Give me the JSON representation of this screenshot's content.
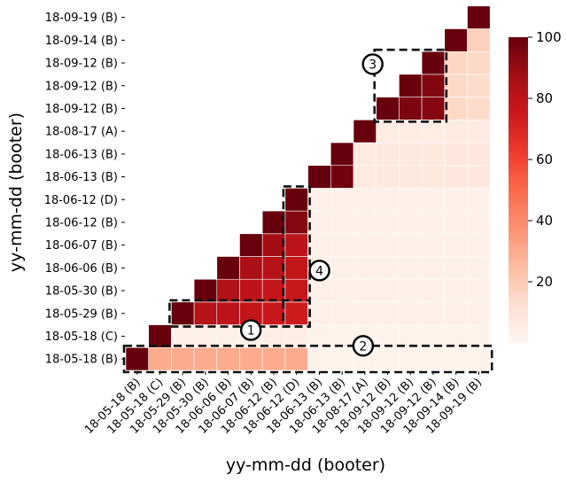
{
  "chart_data": {
    "type": "heatmap",
    "xlabel": "yy-mm-dd (booter)",
    "ylabel": "yy-mm-dd (booter)",
    "categories": [
      "18-05-18 (B)",
      "18-05-18 (C)",
      "18-05-29 (B)",
      "18-05-30 (B)",
      "18-06-06 (B)",
      "18-06-07 (B)",
      "18-06-12 (B)",
      "18-06-12 (D)",
      "18-06-13 (B)",
      "18-06-13 (B)",
      "18-08-17 (A)",
      "18-09-12 (B)",
      "18-09-12 (B)",
      "18-09-12 (B)",
      "18-09-14 (B)",
      "18-09-19 (B)"
    ],
    "matrix": [
      [
        100,
        30,
        30,
        30,
        30,
        30,
        30,
        30,
        2,
        2,
        2,
        2,
        2,
        2,
        2,
        2
      ],
      [
        null,
        100,
        3,
        3,
        3,
        3,
        4,
        4,
        2,
        2,
        2,
        2,
        2,
        2,
        2,
        2
      ],
      [
        null,
        null,
        100,
        82,
        80,
        78,
        76,
        74,
        3,
        3,
        3,
        3,
        3,
        3,
        3,
        3
      ],
      [
        null,
        null,
        null,
        100,
        84,
        80,
        78,
        76,
        3,
        3,
        3,
        3,
        3,
        3,
        3,
        3
      ],
      [
        null,
        null,
        null,
        null,
        100,
        86,
        82,
        78,
        3,
        3,
        3,
        3,
        3,
        3,
        3,
        3
      ],
      [
        null,
        null,
        null,
        null,
        null,
        100,
        88,
        80,
        3,
        3,
        3,
        3,
        3,
        3,
        3,
        3
      ],
      [
        null,
        null,
        null,
        null,
        null,
        null,
        100,
        94,
        3,
        3,
        3,
        3,
        3,
        3,
        3,
        3
      ],
      [
        null,
        null,
        null,
        null,
        null,
        null,
        null,
        100,
        3,
        3,
        3,
        3,
        3,
        3,
        3,
        3
      ],
      [
        null,
        null,
        null,
        null,
        null,
        null,
        null,
        null,
        100,
        98,
        6,
        7,
        7,
        7,
        8,
        8
      ],
      [
        null,
        null,
        null,
        null,
        null,
        null,
        null,
        null,
        null,
        100,
        6,
        7,
        7,
        7,
        8,
        8
      ],
      [
        null,
        null,
        null,
        null,
        null,
        null,
        null,
        null,
        null,
        null,
        100,
        5,
        5,
        5,
        6,
        6
      ],
      [
        null,
        null,
        null,
        null,
        null,
        null,
        null,
        null,
        null,
        null,
        null,
        100,
        96,
        94,
        15,
        14
      ],
      [
        null,
        null,
        null,
        null,
        null,
        null,
        null,
        null,
        null,
        null,
        null,
        null,
        100,
        95,
        15,
        14
      ],
      [
        null,
        null,
        null,
        null,
        null,
        null,
        null,
        null,
        null,
        null,
        null,
        null,
        null,
        100,
        16,
        15
      ],
      [
        null,
        null,
        null,
        null,
        null,
        null,
        null,
        null,
        null,
        null,
        null,
        null,
        null,
        null,
        100,
        18
      ],
      [
        null,
        null,
        null,
        null,
        null,
        null,
        null,
        null,
        null,
        null,
        null,
        null,
        null,
        null,
        null,
        100
      ]
    ],
    "colorbar": {
      "min": 0,
      "max": 100,
      "ticks": [
        20,
        40,
        60,
        80,
        100
      ],
      "colormap": "Reds"
    },
    "annotations": [
      {
        "label": "1",
        "rows": [
          2,
          2
        ],
        "cols": [
          2,
          7
        ]
      },
      {
        "label": "2",
        "rows": [
          0,
          0
        ],
        "cols": [
          0,
          15
        ]
      },
      {
        "label": "3",
        "rows": [
          11,
          13
        ],
        "cols": [
          11,
          13
        ]
      },
      {
        "label": "4",
        "rows": [
          2,
          7
        ],
        "cols": [
          7,
          7
        ]
      }
    ]
  }
}
